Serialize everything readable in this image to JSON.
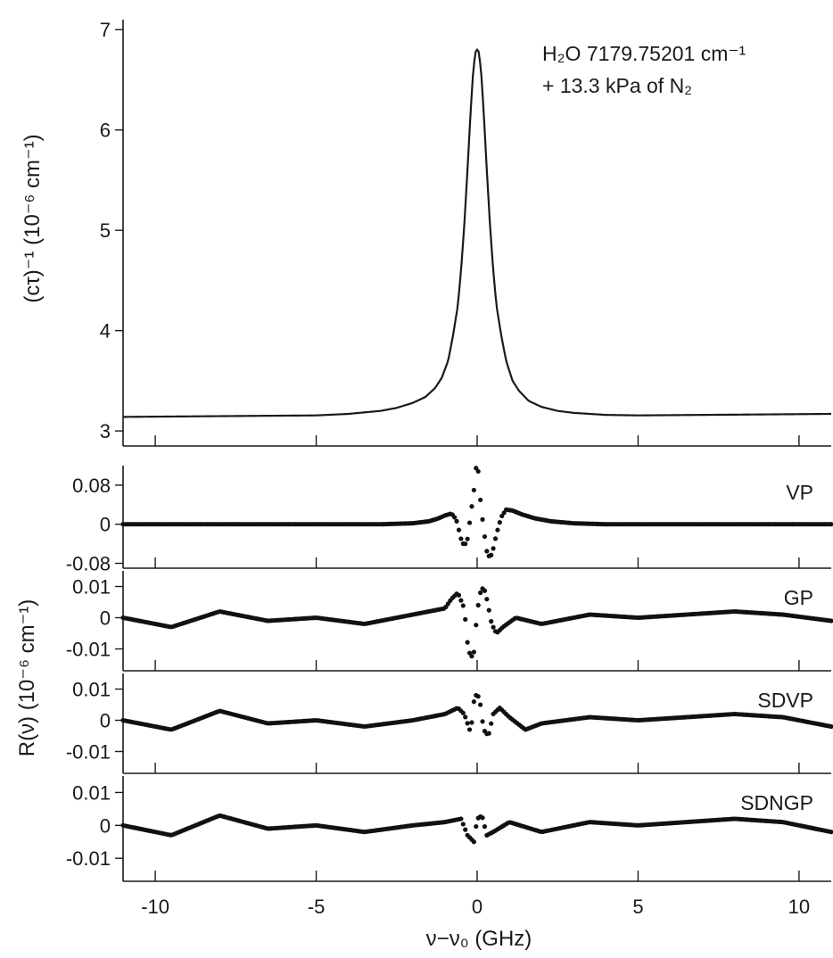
{
  "chart_data": [
    {
      "type": "line",
      "panel": "top",
      "ylabel": "(cτ)⁻¹ (10⁻⁶ cm⁻¹)",
      "ylim": [
        2.85,
        7.1
      ],
      "yticks": [
        "3",
        "4",
        "5",
        "6",
        "7"
      ],
      "xlim": [
        -11,
        11
      ],
      "annotation_line1": "H₂O 7179.75201 cm⁻¹",
      "annotation_line2": "+ 13.3 kPa of N₂",
      "series": [
        {
          "x": [
            -11,
            -9,
            -7,
            -5,
            -4,
            -3,
            -2.5,
            -2,
            -1.6,
            -1.3,
            -1.1,
            -0.9,
            -0.75,
            -0.6,
            -0.5,
            -0.4,
            -0.3,
            -0.2,
            -0.12,
            -0.05,
            0,
            0.05,
            0.12,
            0.2,
            0.3,
            0.4,
            0.5,
            0.6,
            0.75,
            0.9,
            1.1,
            1.3,
            1.6,
            2,
            2.5,
            3,
            4,
            5,
            7,
            9,
            11
          ],
          "values": [
            3.14,
            3.145,
            3.15,
            3.155,
            3.17,
            3.2,
            3.23,
            3.28,
            3.34,
            3.43,
            3.53,
            3.7,
            3.95,
            4.25,
            4.6,
            5.05,
            5.6,
            6.2,
            6.6,
            6.78,
            6.8,
            6.78,
            6.6,
            6.2,
            5.6,
            5.05,
            4.6,
            4.25,
            3.95,
            3.7,
            3.5,
            3.4,
            3.3,
            3.24,
            3.2,
            3.18,
            3.16,
            3.155,
            3.16,
            3.165,
            3.17
          ]
        }
      ]
    },
    {
      "type": "scatter",
      "panel": "VP",
      "label": "VP",
      "ylim": [
        -0.09,
        0.12
      ],
      "yticks": [
        "0.08",
        "0",
        "-0.08"
      ],
      "xlim": [
        -11,
        11
      ],
      "series": [
        {
          "x": [
            -11,
            -3,
            -2,
            -1.5,
            -1.2,
            -1,
            -0.8,
            -0.65,
            -0.5,
            -0.4,
            -0.3,
            -0.2,
            -0.1,
            -0.05,
            0,
            0.05,
            0.1,
            0.2,
            0.3,
            0.4,
            0.5,
            0.6,
            0.75,
            0.9,
            1.1,
            1.4,
            1.8,
            2.3,
            3,
            4,
            11
          ],
          "values": [
            0,
            0,
            0.002,
            0.006,
            0.012,
            0.018,
            0.022,
            0.01,
            -0.03,
            -0.045,
            -0.03,
            0.02,
            0.07,
            0.11,
            0.125,
            0.1,
            0.05,
            -0.01,
            -0.055,
            -0.07,
            -0.05,
            -0.02,
            0.015,
            0.03,
            0.028,
            0.02,
            0.012,
            0.006,
            0.002,
            0,
            0
          ]
        }
      ]
    },
    {
      "type": "scatter",
      "panel": "GP",
      "label": "GP",
      "ylim": [
        -0.017,
        0.015
      ],
      "yticks": [
        "0.01",
        "0",
        "-0.01"
      ],
      "xlim": [
        -11,
        11
      ],
      "series": [
        {
          "x": [
            -11,
            -9.5,
            -8,
            -6.5,
            -5,
            -3.5,
            -2.5,
            -1.5,
            -1,
            -0.8,
            -0.6,
            -0.4,
            -0.3,
            -0.2,
            -0.1,
            0,
            0.1,
            0.2,
            0.3,
            0.45,
            0.6,
            0.8,
            1.2,
            2,
            3.5,
            5,
            6.5,
            8,
            9.5,
            11
          ],
          "values": [
            0,
            -0.003,
            0.002,
            -0.001,
            0,
            -0.002,
            0,
            0.002,
            0.003,
            0.006,
            0.008,
            0.003,
            -0.008,
            -0.013,
            -0.011,
            0.002,
            0.008,
            0.01,
            0.006,
            -0.002,
            -0.005,
            -0.003,
            0,
            -0.002,
            0.001,
            0,
            0.001,
            0.002,
            0.001,
            -0.001
          ]
        }
      ]
    },
    {
      "type": "scatter",
      "panel": "SDVP",
      "label": "SDVP",
      "ylim": [
        -0.017,
        0.015
      ],
      "yticks": [
        "0.01",
        "0",
        "-0.01"
      ],
      "xlim": [
        -11,
        11
      ],
      "series": [
        {
          "x": [
            -11,
            -9.5,
            -8,
            -6.5,
            -5,
            -3.5,
            -2,
            -1,
            -0.6,
            -0.4,
            -0.2,
            -0.1,
            0,
            0.1,
            0.2,
            0.35,
            0.5,
            0.7,
            1,
            1.5,
            2,
            3.5,
            5,
            6.5,
            8,
            9.5,
            11
          ],
          "values": [
            0,
            -0.003,
            0.003,
            -0.001,
            0,
            -0.002,
            0,
            0.002,
            0.004,
            0.002,
            -0.004,
            0.006,
            0.009,
            0.005,
            -0.003,
            -0.005,
            0.002,
            0.004,
            0.001,
            -0.003,
            -0.001,
            0.001,
            0,
            0.001,
            0.002,
            0.001,
            -0.002
          ]
        }
      ]
    },
    {
      "type": "scatter",
      "panel": "SDNGP",
      "label": "SDNGP",
      "ylim": [
        -0.017,
        0.015
      ],
      "yticks": [
        "0.01",
        "0",
        "-0.01"
      ],
      "xlim": [
        -11,
        11
      ],
      "series": [
        {
          "x": [
            -11,
            -9.5,
            -8,
            -6.5,
            -5,
            -3.5,
            -2,
            -1,
            -0.5,
            -0.3,
            -0.1,
            0,
            0.15,
            0.3,
            0.5,
            1,
            2,
            3.5,
            5,
            6.5,
            8,
            9.5,
            11
          ],
          "values": [
            0,
            -0.003,
            0.003,
            -0.001,
            0,
            -0.002,
            0,
            0.001,
            0.002,
            -0.003,
            -0.005,
            0.002,
            0.003,
            -0.003,
            -0.002,
            0.001,
            -0.002,
            0.001,
            0,
            0.001,
            0.002,
            0.001,
            -0.002
          ]
        }
      ]
    }
  ],
  "x_axis": {
    "ticks": [
      -10,
      -5,
      0,
      5,
      10
    ],
    "tick_labels": [
      "-10",
      "-5",
      "0",
      "5",
      "10"
    ],
    "xlabel": "ν−ν₀ (GHz)"
  },
  "residual_ylabel": "R(ν) (10⁻⁶ cm⁻¹)",
  "colors": {
    "line": "#1a1a1a",
    "points": "#111111"
  }
}
